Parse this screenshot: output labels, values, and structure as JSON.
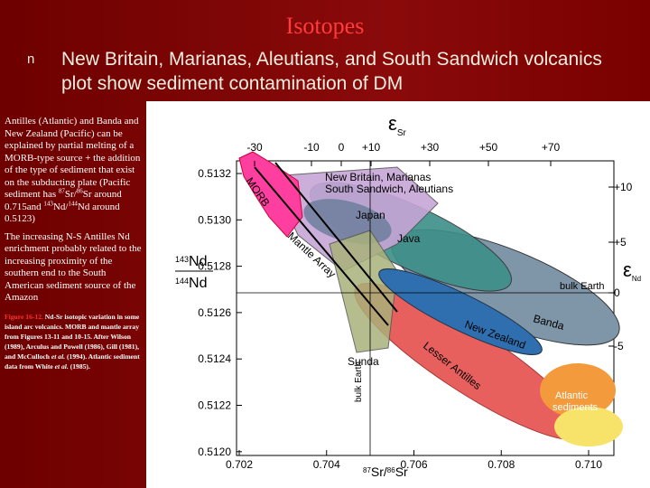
{
  "header": {
    "title": "Isotopes"
  },
  "bullet": {
    "marker": "n",
    "text": "New Britain, Marianas, Aleutians, and South Sandwich volcanics plot show sediment contamination of DM"
  },
  "sidebar": {
    "paragraph1": [
      "Antilles (Atlantic) and Banda and New Zealand (Pacific) can be explained by partial melting of a MORB-type source + the addition of the type of sediment that exist on the subducting plate (Pacific sediment has ",
      "87",
      "Sr/",
      "86",
      "Sr around 0.715and ",
      "143",
      "Nd/",
      "144",
      "Nd around 0.5123)"
    ],
    "paragraph2": "The increasing N-S Antilles Nd enrichment probably related to the increasing proximity of the southern end to the South American sediment source of the Amazon",
    "caption": [
      "Figure 16-12.",
      " Nd-Sr isotopic variation in some island arc volcanics. MORB and mantle array from Figures 13-11 and 10-15. After Wilson (1989), Arculus and Powell (1986), Gill (1981), and McCulloch ",
      "et al.",
      " (1994). Atlantic sediment data from White ",
      "et al.",
      " (1985)."
    ]
  },
  "figure": {
    "top_axis_label": [
      "ε",
      "Sr"
    ],
    "top_ticks": [
      "-30",
      "-10",
      "0",
      "+10",
      "+30",
      "+50",
      "+70"
    ],
    "left_axis_label": [
      "143",
      "Nd",
      "144",
      "Nd"
    ],
    "left_ticks": [
      "0.5132",
      "0.5130",
      "0.5128",
      "0.5126",
      "0.5124",
      "0.5122",
      "0.5120"
    ],
    "right_axis_label": [
      "ε",
      "Nd"
    ],
    "right_ticks": [
      "+10",
      "+5",
      "0",
      "-5"
    ],
    "bottom_axis_label": [
      "87",
      "Sr/",
      "86",
      "Sr"
    ],
    "bottom_ticks": [
      "0.702",
      "0.704",
      "0.706",
      "0.708",
      "0.710"
    ],
    "fields": {
      "morb": "MORB",
      "mantle_array": "Mantle Array",
      "new_britain_1": "New Britain, Marianas",
      "new_britain_2": "South Sandwich, Aleutians",
      "japan": "Japan",
      "java": "Java",
      "bulk_earth_h": "bulk Earth",
      "bulk_earth_v": "bulk Earth",
      "banda": "Banda",
      "new_zealand": "New Zealand",
      "lesser_antilles": "Lesser Antilles",
      "sunda": "Sunda",
      "atlantic_sediments_1": "Atlantic",
      "atlantic_sediments_2": "sediments"
    }
  }
}
